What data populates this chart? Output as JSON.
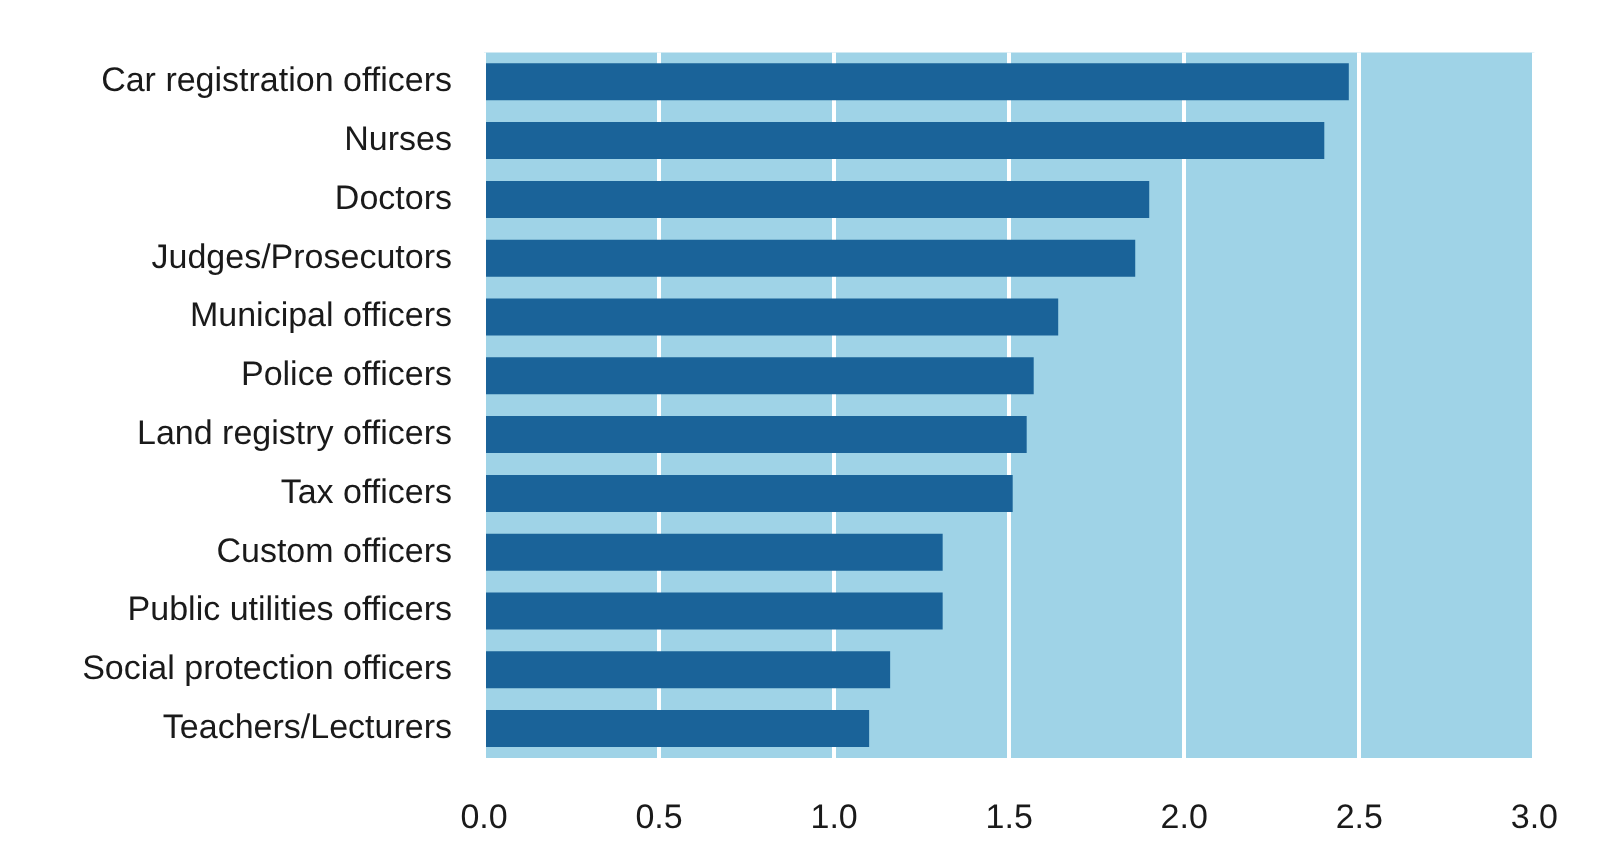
{
  "chart_data": {
    "type": "bar",
    "orientation": "horizontal",
    "categories": [
      "Car registration officers",
      "Nurses",
      "Doctors",
      "Judges/Prosecutors",
      "Municipal officers",
      "Police officers",
      "Land registry officers",
      "Tax officers",
      "Custom officers",
      "Public utilities officers",
      "Social protection officers",
      "Teachers/Lecturers"
    ],
    "values": [
      2.47,
      2.4,
      1.9,
      1.86,
      1.64,
      1.57,
      1.55,
      1.51,
      1.31,
      1.31,
      1.16,
      1.1
    ],
    "color": "#1a6399",
    "xlim": [
      0,
      3
    ],
    "xticks": [
      {
        "value": 0,
        "label": "0.0"
      },
      {
        "value": 0.5,
        "label": "0.5"
      },
      {
        "value": 1,
        "label": "1.0"
      },
      {
        "value": 1.5,
        "label": "1.5"
      },
      {
        "value": 2,
        "label": "2.0"
      },
      {
        "value": 2.5,
        "label": "2.5"
      },
      {
        "value": 3,
        "label": "3.0"
      }
    ],
    "grid": "x"
  }
}
